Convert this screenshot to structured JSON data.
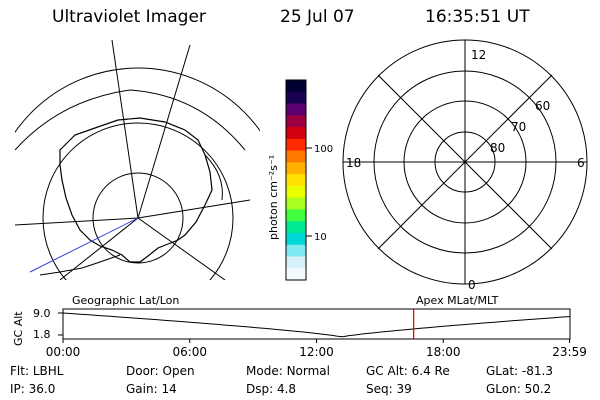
{
  "header": {
    "title": "Ultraviolet Imager",
    "date": "25 Jul 07",
    "time": "16:35:51 UT"
  },
  "left_map": {
    "label": "Geographic Lat/Lon"
  },
  "colorbar": {
    "unit_label": "photon cm⁻²s⁻¹",
    "ticks": [
      "100",
      "10"
    ],
    "colors": [
      "#000033",
      "#1a0050",
      "#5c0070",
      "#9b0040",
      "#d00010",
      "#ff2a00",
      "#ff7a00",
      "#ffb000",
      "#ffe000",
      "#e8ff00",
      "#a8ff20",
      "#40ff40",
      "#00e890",
      "#00d8d8",
      "#80e8f0",
      "#d8f0f8",
      "#f4fbff"
    ]
  },
  "right_polar": {
    "label": "Apex MLat/MLT",
    "mlt_labels": {
      "top": "12",
      "left": "18",
      "right": "6",
      "bottom": "0"
    },
    "lat_labels": [
      "60",
      "70",
      "80"
    ]
  },
  "altitude_plot": {
    "ylabel": "GC Alt",
    "yticks": [
      "9.0",
      "1.8"
    ],
    "xticks": [
      "00:00",
      "06:00",
      "12:00",
      "18:00",
      "23:59"
    ],
    "current_hour": 16.6,
    "colors": {
      "curve": "#000000",
      "marker": "#d00000"
    }
  },
  "info": {
    "row1": [
      {
        "key": "Flt:",
        "value": "LBHL"
      },
      {
        "key": "Door:",
        "value": "Open"
      },
      {
        "key": "Mode:",
        "value": "Normal"
      },
      {
        "key": "GC Alt:",
        "value": "6.4 Re"
      },
      {
        "key": "GLat:",
        "value": "-81.3"
      }
    ],
    "row2": [
      {
        "key": "IP:",
        "value": "36.0"
      },
      {
        "key": "Gain:",
        "value": "14"
      },
      {
        "key": "Dsp:",
        "value": "4.8"
      },
      {
        "key": "Seq:",
        "value": "39"
      },
      {
        "key": "GLon:",
        "value": "50.2"
      }
    ]
  }
}
